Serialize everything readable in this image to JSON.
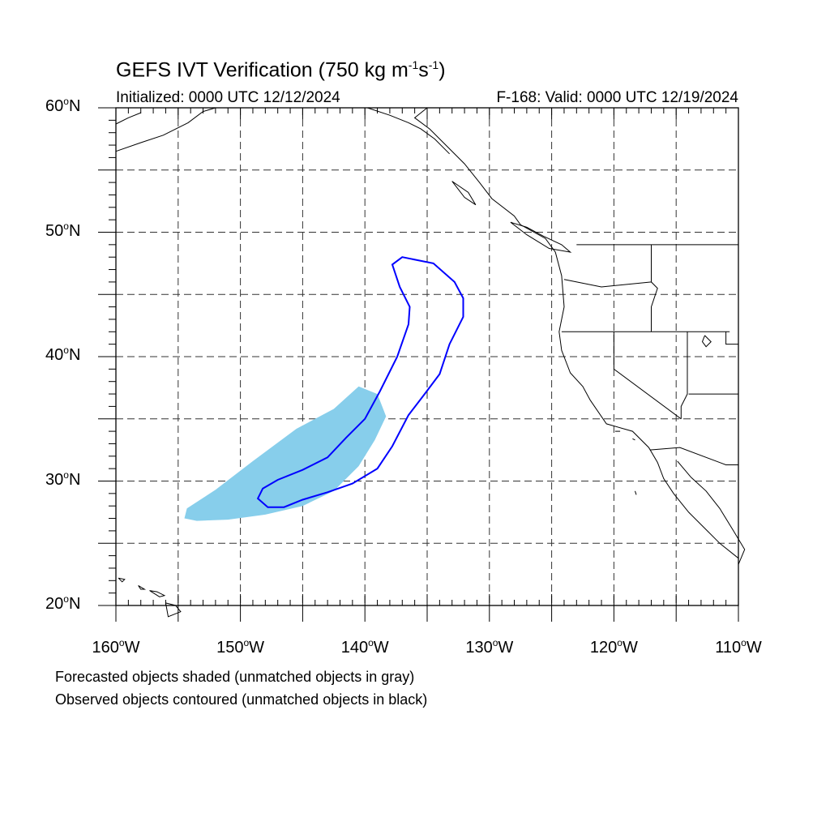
{
  "title": {
    "main": "GEFS IVT Verification (750 kg m",
    "exp1": "-1",
    "mid": "s",
    "exp2": "-1",
    "end": ")"
  },
  "initialized": "Initialized: 0000 UTC 12/12/2024",
  "valid": "F-168: Valid: 0000 UTC 12/19/2024",
  "lat_labels": [
    {
      "value": 60,
      "text": "60",
      "hemi": "N"
    },
    {
      "value": 50,
      "text": "50",
      "hemi": "N"
    },
    {
      "value": 40,
      "text": "40",
      "hemi": "N"
    },
    {
      "value": 30,
      "text": "30",
      "hemi": "N"
    },
    {
      "value": 20,
      "text": "20",
      "hemi": "N"
    }
  ],
  "lon_labels": [
    {
      "value": -160,
      "text": "160",
      "hemi": "W"
    },
    {
      "value": -150,
      "text": "150",
      "hemi": "W"
    },
    {
      "value": -140,
      "text": "140",
      "hemi": "W"
    },
    {
      "value": -130,
      "text": "130",
      "hemi": "W"
    },
    {
      "value": -120,
      "text": "120",
      "hemi": "W"
    },
    {
      "value": -110,
      "text": "110",
      "hemi": "W"
    }
  ],
  "extent": {
    "lon_min": -160,
    "lon_max": -110,
    "lat_min": 20,
    "lat_max": 60
  },
  "notes": [
    "Forecasted objects shaded (unmatched objects in gray)",
    "Observed objects contoured (unmatched objects in black)"
  ],
  "colors": {
    "forecast_fill": "#87ceeb",
    "observed_contour": "#0000ff",
    "coast": "#000000",
    "grid": "#333333"
  },
  "forecast_object": [
    [
      -154.5,
      27.0
    ],
    [
      -153.5,
      26.8
    ],
    [
      -151,
      26.9
    ],
    [
      -148,
      27.3
    ],
    [
      -145,
      28.0
    ],
    [
      -142.5,
      29.2
    ],
    [
      -140.5,
      31.2
    ],
    [
      -139.2,
      33.3
    ],
    [
      -138.3,
      35.2
    ],
    [
      -139.0,
      37.0
    ],
    [
      -140.5,
      37.6
    ],
    [
      -142.5,
      35.8
    ],
    [
      -145.5,
      34.2
    ],
    [
      -149,
      31.6
    ],
    [
      -152,
      29.3
    ],
    [
      -154.3,
      27.8
    ]
  ],
  "observed_object": [
    [
      -137.0,
      48.0
    ],
    [
      -134.5,
      47.5
    ],
    [
      -132.8,
      46.0
    ],
    [
      -132.1,
      44.7
    ],
    [
      -132.1,
      43.2
    ],
    [
      -133.2,
      41.0
    ],
    [
      -134.0,
      38.6
    ],
    [
      -135.2,
      37.0
    ],
    [
      -136.5,
      35.3
    ],
    [
      -137.8,
      32.8
    ],
    [
      -139.0,
      31.0
    ],
    [
      -141.0,
      29.8
    ],
    [
      -143.0,
      29.1
    ],
    [
      -145.0,
      28.5
    ],
    [
      -146.5,
      27.9
    ],
    [
      -147.8,
      27.9
    ],
    [
      -148.6,
      28.6
    ],
    [
      -148.2,
      29.4
    ],
    [
      -147.0,
      30.1
    ],
    [
      -145.0,
      30.9
    ],
    [
      -143.0,
      31.9
    ],
    [
      -141.5,
      33.5
    ],
    [
      -140.0,
      35.0
    ],
    [
      -138.8,
      37.2
    ],
    [
      -137.4,
      40.0
    ],
    [
      -136.5,
      42.6
    ],
    [
      -136.4,
      44.0
    ],
    [
      -137.2,
      45.6
    ],
    [
      -137.8,
      47.4
    ]
  ]
}
